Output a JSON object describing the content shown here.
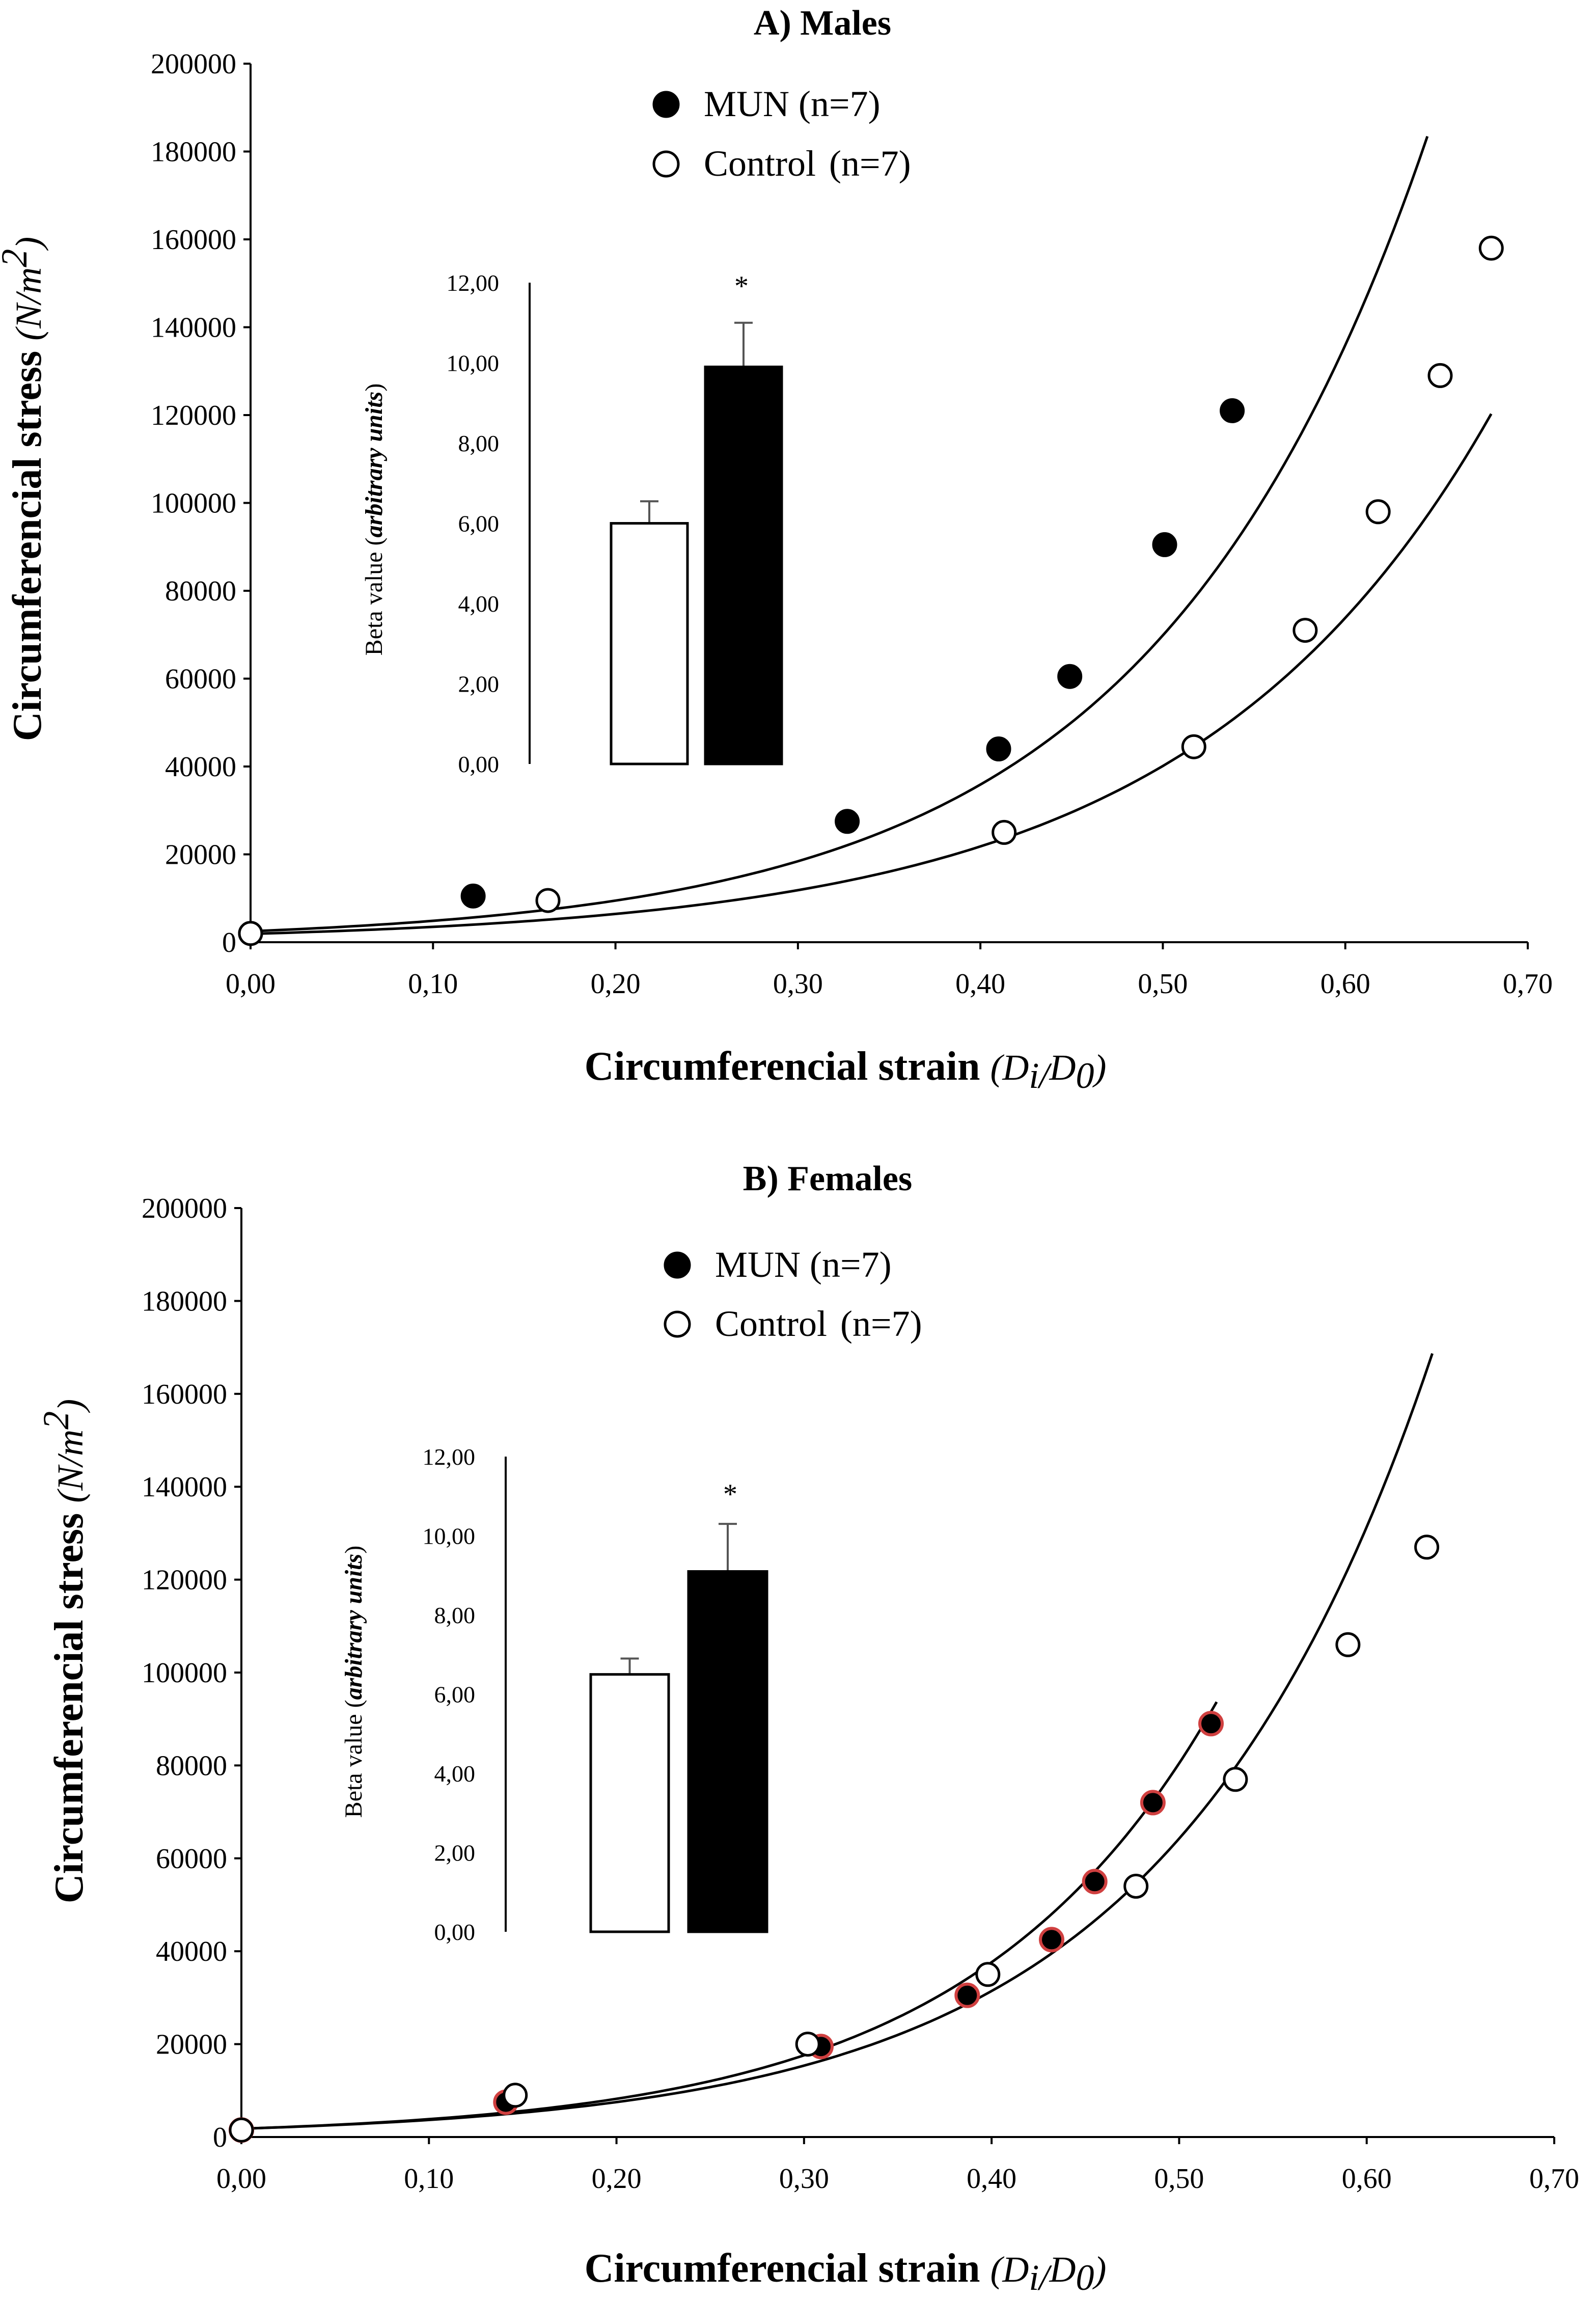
{
  "figure": {
    "panels": [
      {
        "id": "A",
        "title": "A) Males",
        "ylabel": "Circumferencial stress",
        "yunit_text": "N/m",
        "yunit_sup": "2",
        "xlabel": "Circumferencial strain",
        "xunit_main": "D",
        "xunit_sub1": "i/",
        "xunit_d": "D",
        "xunit_sub2": "0",
        "legend": [
          {
            "label": "MUN",
            "n": "(n=7)",
            "marker": "filled-circle"
          },
          {
            "label": "Control",
            "n": "(n=7)",
            "marker": "open-circle"
          }
        ],
        "inset": {
          "ylabel": "Beta value",
          "yunit": "arbitrary units",
          "significance": "*"
        }
      },
      {
        "id": "B",
        "title": "B) Females",
        "ylabel": "Circumferencial stress",
        "yunit_text": "N/m",
        "yunit_sup": "2",
        "xlabel": "Circumferencial strain",
        "xunit_main": "D",
        "xunit_sub1": "i/",
        "xunit_d": "D",
        "xunit_sub2": "0",
        "legend": [
          {
            "label": "MUN",
            "n": "(n=7)",
            "marker": "filled-circle"
          },
          {
            "label": "Control",
            "n": "(n=7)",
            "marker": "open-circle"
          }
        ],
        "inset": {
          "ylabel": "Beta value",
          "yunit": "arbitrary units",
          "significance": "*"
        }
      }
    ]
  },
  "chart_data": [
    {
      "type": "scatter",
      "title": "A) Males",
      "xlabel": "Circumferencial strain (Di/D0)",
      "ylabel": "Circumferencial stress (N/m2)",
      "xlim": [
        0,
        0.7
      ],
      "ylim": [
        0,
        200000
      ],
      "xticks": [
        "0,00",
        "0,10",
        "0,20",
        "0,30",
        "0,40",
        "0,50",
        "0,60",
        "0,70"
      ],
      "yticks": [
        "0",
        "20000",
        "40000",
        "60000",
        "80000",
        "100000",
        "120000",
        "140000",
        "160000",
        "180000",
        "200000"
      ],
      "series": [
        {
          "name": "MUN (n=7)",
          "marker": "filled",
          "color": "#000000",
          "x": [
            0.0,
            0.122,
            0.327,
            0.41,
            0.449,
            0.501,
            0.538
          ],
          "y": [
            2000,
            10500,
            27500,
            44000,
            60500,
            90500,
            121000
          ],
          "fit": {
            "a": 2500,
            "b": 6.66,
            "x_end": 0.645
          }
        },
        {
          "name": "Control (n=7)",
          "marker": "open",
          "color": "#000000",
          "x": [
            0.0,
            0.163,
            0.413,
            0.517,
            0.578,
            0.618,
            0.652,
            0.68
          ],
          "y": [
            2000,
            9500,
            25000,
            44500,
            71000,
            98000,
            129000,
            158000
          ],
          "fit": {
            "a": 1900,
            "b": 6.1,
            "x_end": 0.68
          }
        }
      ],
      "inset": {
        "type": "bar",
        "ylabel": "Beta value (arbitrary units)",
        "ylim": [
          0,
          12
        ],
        "yticks": [
          "0,00",
          "2,00",
          "4,00",
          "6,00",
          "8,00",
          "10,00",
          "12,00"
        ],
        "categories": [
          "Control",
          "MUN"
        ],
        "values": [
          6.0,
          9.9
        ],
        "errors": [
          0.55,
          1.1
        ],
        "colors": [
          "#ffffff",
          "#000000"
        ],
        "significance": "*"
      }
    },
    {
      "type": "scatter",
      "title": "B) Females",
      "xlabel": "Circumferencial strain (Di/D0)",
      "ylabel": "Circumferencial stress (N/m2)",
      "xlim": [
        0,
        0.7
      ],
      "ylim": [
        0,
        200000
      ],
      "xticks": [
        "0,00",
        "0,10",
        "0,20",
        "0,30",
        "0,40",
        "0,50",
        "0,60",
        "0,70"
      ],
      "yticks": [
        "0",
        "20000",
        "40000",
        "60000",
        "80000",
        "100000",
        "120000",
        "140000",
        "160000",
        "180000",
        "200000"
      ],
      "series": [
        {
          "name": "MUN (n=7)",
          "marker": "filled",
          "color": "#000000",
          "edge": "#d04040",
          "x": [
            0.0,
            0.141,
            0.309,
            0.387,
            0.432,
            0.455,
            0.486,
            0.517
          ],
          "y": [
            1500,
            7500,
            19500,
            30500,
            42500,
            55000,
            72000,
            89000
          ],
          "fit": {
            "a": 1800,
            "b": 7.6,
            "x_end": 0.52
          }
        },
        {
          "name": "Control (n=7)",
          "marker": "open",
          "color": "#000000",
          "x": [
            0.0,
            0.146,
            0.302,
            0.398,
            0.477,
            0.53,
            0.59,
            0.632
          ],
          "y": [
            1500,
            9000,
            20000,
            35000,
            54000,
            77000,
            106000,
            127000
          ],
          "fit": {
            "a": 1800,
            "b": 7.15,
            "x_end": 0.635
          }
        }
      ],
      "inset": {
        "type": "bar",
        "ylabel": "Beta value (arbitrary units)",
        "ylim": [
          0,
          12
        ],
        "yticks": [
          "0,00",
          "2,00",
          "4,00",
          "6,00",
          "8,00",
          "10,00",
          "12,00"
        ],
        "categories": [
          "Control",
          "MUN"
        ],
        "values": [
          6.5,
          9.1
        ],
        "errors": [
          0.4,
          1.2
        ],
        "colors": [
          "#ffffff",
          "#000000"
        ],
        "significance": "*"
      }
    }
  ]
}
